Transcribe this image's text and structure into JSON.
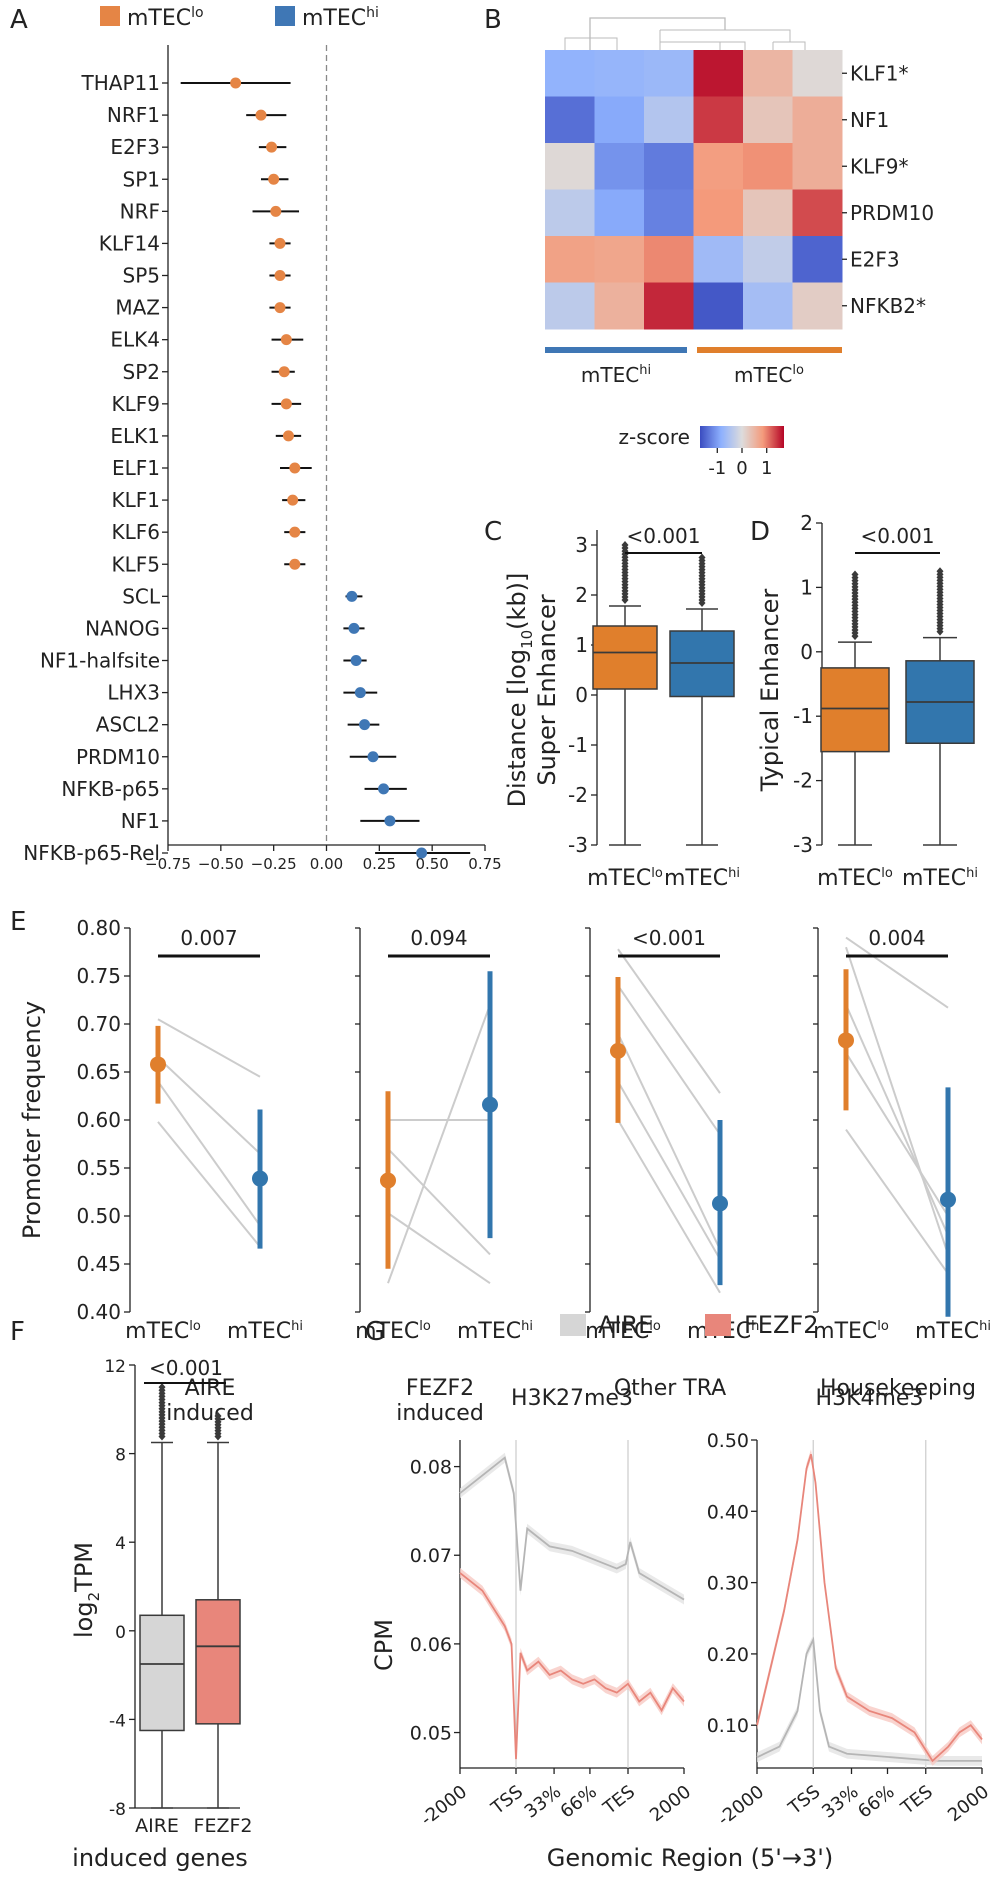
{
  "colors": {
    "lo": "#e58545",
    "hi": "#3f77b5",
    "lo_box": "#e07f2c",
    "hi_box": "#3276ad",
    "aire": "#d6d6d6",
    "fezf2": "#e8867b",
    "grey_line": "#cccccc"
  },
  "chart_data": [
    {
      "panel": "A",
      "type": "forest",
      "legend": [
        {
          "name": "mTEC",
          "sup": "lo"
        },
        {
          "name": "mTEC",
          "sup": "hi"
        }
      ],
      "xlim": [
        -0.75,
        0.75
      ],
      "xticks": [
        "−0.75",
        "−0.50",
        "−0.25",
        "0.00",
        "0.25",
        "0.50",
        "0.75"
      ],
      "xtick_values": [
        -0.75,
        -0.5,
        -0.25,
        0,
        0.25,
        0.5,
        0.75
      ],
      "rows": [
        {
          "label": "THAP11",
          "group": "lo",
          "est": -0.43,
          "lo": -0.69,
          "hi": -0.17
        },
        {
          "label": "NRF1",
          "group": "lo",
          "est": -0.31,
          "lo": -0.38,
          "hi": -0.19
        },
        {
          "label": "E2F3",
          "group": "lo",
          "est": -0.26,
          "lo": -0.32,
          "hi": -0.19
        },
        {
          "label": "SP1",
          "group": "lo",
          "est": -0.25,
          "lo": -0.31,
          "hi": -0.18
        },
        {
          "label": "NRF",
          "group": "lo",
          "est": -0.24,
          "lo": -0.35,
          "hi": -0.13
        },
        {
          "label": "KLF14",
          "group": "lo",
          "est": -0.22,
          "lo": -0.27,
          "hi": -0.17
        },
        {
          "label": "SP5",
          "group": "lo",
          "est": -0.22,
          "lo": -0.27,
          "hi": -0.17
        },
        {
          "label": "MAZ",
          "group": "lo",
          "est": -0.22,
          "lo": -0.27,
          "hi": -0.17
        },
        {
          "label": "ELK4",
          "group": "lo",
          "est": -0.19,
          "lo": -0.26,
          "hi": -0.11
        },
        {
          "label": "SP2",
          "group": "lo",
          "est": -0.2,
          "lo": -0.26,
          "hi": -0.15
        },
        {
          "label": "KLF9",
          "group": "lo",
          "est": -0.19,
          "lo": -0.26,
          "hi": -0.12
        },
        {
          "label": "ELK1",
          "group": "lo",
          "est": -0.18,
          "lo": -0.24,
          "hi": -0.12
        },
        {
          "label": "ELF1",
          "group": "lo",
          "est": -0.15,
          "lo": -0.22,
          "hi": -0.07
        },
        {
          "label": "KLF1",
          "group": "lo",
          "est": -0.16,
          "lo": -0.21,
          "hi": -0.1
        },
        {
          "label": "KLF6",
          "group": "lo",
          "est": -0.15,
          "lo": -0.2,
          "hi": -0.1
        },
        {
          "label": "KLF5",
          "group": "lo",
          "est": -0.15,
          "lo": -0.2,
          "hi": -0.1
        },
        {
          "label": "SCL",
          "group": "hi",
          "est": 0.12,
          "lo": 0.09,
          "hi": 0.17
        },
        {
          "label": "NANOG",
          "group": "hi",
          "est": 0.13,
          "lo": 0.08,
          "hi": 0.18
        },
        {
          "label": "NF1-halfsite",
          "group": "hi",
          "est": 0.14,
          "lo": 0.08,
          "hi": 0.19
        },
        {
          "label": "LHX3",
          "group": "hi",
          "est": 0.16,
          "lo": 0.08,
          "hi": 0.24
        },
        {
          "label": "ASCL2",
          "group": "hi",
          "est": 0.18,
          "lo": 0.1,
          "hi": 0.25
        },
        {
          "label": "PRDM10",
          "group": "hi",
          "est": 0.22,
          "lo": 0.11,
          "hi": 0.33
        },
        {
          "label": "NFKB-p65",
          "group": "hi",
          "est": 0.27,
          "lo": 0.18,
          "hi": 0.38
        },
        {
          "label": "NF1",
          "group": "hi",
          "est": 0.3,
          "lo": 0.16,
          "hi": 0.44
        },
        {
          "label": "NFKB-p65-Rel",
          "group": "hi",
          "est": 0.45,
          "lo": 0.23,
          "hi": 0.68
        }
      ]
    },
    {
      "panel": "B",
      "type": "heatmap",
      "rows": [
        "KLF1*",
        "NF1",
        "KLF9*",
        "PRDM10",
        "E2F3",
        "NFKB2*"
      ],
      "groups": [
        {
          "name": "mTEC",
          "sup": "hi"
        },
        {
          "name": "mTEC",
          "sup": "lo"
        }
      ],
      "values": [
        [
          -0.8,
          -0.75,
          -0.7,
          1.6,
          0.5,
          0.05
        ],
        [
          -1.4,
          -0.9,
          -0.45,
          1.4,
          0.3,
          0.6
        ],
        [
          0.05,
          -1.1,
          -1.3,
          0.8,
          0.9,
          0.6
        ],
        [
          -0.35,
          -0.9,
          -1.25,
          0.85,
          0.3,
          1.3
        ],
        [
          0.75,
          0.7,
          0.95,
          -0.65,
          -0.3,
          -1.5
        ],
        [
          -0.35,
          0.55,
          1.5,
          -1.6,
          -0.6,
          0.2
        ]
      ],
      "colorbar": {
        "title": "z-score",
        "ticks": [
          "-1",
          "0",
          "1"
        ],
        "range": [
          -1.7,
          1.7
        ]
      }
    },
    {
      "panel": "C",
      "type": "box",
      "title": "Super Enhancer",
      "ylabel_parts": [
        "Distance [log",
        "10",
        "(kb)]"
      ],
      "ylim": [
        -3,
        3.3
      ],
      "yticks": [
        "-3",
        "-2",
        "-1",
        "0",
        "1",
        "2",
        "3"
      ],
      "ytick_values": [
        -3,
        -2,
        -1,
        0,
        1,
        2,
        3
      ],
      "groups": [
        {
          "name": "mTEC",
          "sup": "lo",
          "q1": 0.12,
          "median": 0.85,
          "q3": 1.38,
          "whislo": -3.0,
          "whishi": 1.78,
          "fliers_max": 3.0
        },
        {
          "name": "mTEC",
          "sup": "hi",
          "q1": -0.03,
          "median": 0.64,
          "q3": 1.28,
          "whislo": -3.0,
          "whishi": 1.72,
          "fliers_max": 2.75
        }
      ],
      "pvalue": "<0.001"
    },
    {
      "panel": "D",
      "type": "box",
      "title": "Typical Enhancer",
      "ylim": [
        -3,
        2
      ],
      "yticks": [
        "-3",
        "-2",
        "-1",
        "0",
        "1",
        "2"
      ],
      "ytick_values": [
        -3,
        -2,
        -1,
        0,
        1,
        2
      ],
      "groups": [
        {
          "name": "mTEC",
          "sup": "lo",
          "q1": -1.55,
          "median": -0.88,
          "q3": -0.25,
          "whislo": -3.0,
          "whishi": 0.15,
          "fliers_max": 1.2
        },
        {
          "name": "mTEC",
          "sup": "hi",
          "q1": -1.42,
          "median": -0.78,
          "q3": -0.14,
          "whislo": -3.0,
          "whishi": 0.22,
          "fliers_max": 1.25
        }
      ],
      "pvalue": "<0.001"
    },
    {
      "panel": "E",
      "type": "pointrange",
      "ylabel": "Promoter frequency",
      "ylim": [
        0.4,
        0.8
      ],
      "yticks": [
        "0.40",
        "0.45",
        "0.50",
        "0.55",
        "0.60",
        "0.65",
        "0.70",
        "0.75",
        "0.80"
      ],
      "ytick_values": [
        0.4,
        0.45,
        0.5,
        0.55,
        0.6,
        0.65,
        0.7,
        0.75,
        0.8
      ],
      "xcats": [
        {
          "name": "mTEC",
          "sup": "lo"
        },
        {
          "name": "mTEC",
          "sup": "hi"
        }
      ],
      "subpanels": [
        {
          "title": [
            "AIRE",
            "induced"
          ],
          "pvalue": "0.007",
          "lo": {
            "mean": 0.658,
            "low": 0.617,
            "high": 0.698
          },
          "hi": {
            "mean": 0.539,
            "low": 0.466,
            "high": 0.611
          },
          "pairs": [
            [
              0.705,
              0.645
            ],
            [
              0.665,
              0.565
            ],
            [
              0.64,
              0.49
            ],
            [
              0.598,
              0.468
            ]
          ]
        },
        {
          "title": [
            "FEZF2",
            "induced"
          ],
          "pvalue": "0.094",
          "lo": {
            "mean": 0.537,
            "low": 0.445,
            "high": 0.63
          },
          "hi": {
            "mean": 0.616,
            "low": 0.477,
            "high": 0.755
          },
          "pairs": [
            [
              0.6,
              0.6
            ],
            [
              0.57,
              0.46
            ],
            [
              0.503,
              0.43
            ],
            [
              0.43,
              0.72
            ]
          ]
        },
        {
          "title": [
            "Other TRA"
          ],
          "pvalue": "<0.001",
          "lo": {
            "mean": 0.672,
            "low": 0.597,
            "high": 0.749
          },
          "hi": {
            "mean": 0.513,
            "low": 0.428,
            "high": 0.6
          },
          "pairs": [
            [
              0.778,
              0.628
            ],
            [
              0.74,
              0.585
            ],
            [
              0.69,
              0.465
            ],
            [
              0.64,
              0.455
            ],
            [
              0.6,
              0.42
            ]
          ]
        },
        {
          "title": [
            "Housekeeping"
          ],
          "pvalue": "0.004",
          "lo": {
            "mean": 0.683,
            "low": 0.61,
            "high": 0.757
          },
          "hi": {
            "mean": 0.517,
            "low": 0.395,
            "high": 0.634
          },
          "pairs": [
            [
              0.79,
              0.717
            ],
            [
              0.78,
              0.46
            ],
            [
              0.72,
              0.48
            ],
            [
              0.67,
              0.5
            ],
            [
              0.59,
              0.44
            ]
          ]
        }
      ]
    },
    {
      "panel": "F",
      "type": "box",
      "ylabel_parts": [
        "log",
        "2",
        "TPM"
      ],
      "ylim": [
        -8,
        12
      ],
      "yticks": [
        "-8",
        "-4",
        "0",
        "4",
        "8",
        "12"
      ],
      "ytick_values": [
        -8,
        -4,
        0,
        4,
        8,
        12
      ],
      "groups": [
        {
          "name": "AIRE",
          "q1": -4.5,
          "median": -1.5,
          "q3": 0.7,
          "whislo": -8.0,
          "whishi": 8.5,
          "fliers_max": 11.0
        },
        {
          "name": "FEZF2",
          "q1": -4.2,
          "median": -0.7,
          "q3": 1.4,
          "whislo": -8.0,
          "whishi": 8.5,
          "fliers_max": 9.7
        }
      ],
      "pvalue": "<0.001",
      "xlabel": "induced genes"
    },
    {
      "panel": "G",
      "type": "line",
      "legend": [
        "AIRE",
        "FEZF2"
      ],
      "ylabel": "CPM",
      "xlabel": "Genomic Region (5'→3')",
      "xticks": [
        "-2000",
        "TSS",
        "33%",
        "66%",
        "TES",
        "2000"
      ],
      "xtick_values": [
        0,
        0.25,
        0.42,
        0.58,
        0.75,
        1.0
      ],
      "subplots": [
        {
          "title": "H3K27me3",
          "ylim": [
            0.046,
            0.083
          ],
          "yticks": [
            "0.05",
            "0.06",
            "0.07",
            "0.08"
          ],
          "ytick_values": [
            0.05,
            0.06,
            0.07,
            0.08
          ],
          "series": [
            {
              "name": "AIRE",
              "x": [
                0,
                0.05,
                0.1,
                0.15,
                0.2,
                0.24,
                0.27,
                0.3,
                0.35,
                0.4,
                0.5,
                0.6,
                0.7,
                0.74,
                0.76,
                0.8,
                0.9,
                1.0
              ],
              "y": [
                0.077,
                0.078,
                0.079,
                0.08,
                0.081,
                0.077,
                0.066,
                0.073,
                0.072,
                0.071,
                0.0705,
                0.0695,
                0.0685,
                0.069,
                0.0715,
                0.068,
                0.0665,
                0.065
              ]
            },
            {
              "name": "FEZF2",
              "x": [
                0,
                0.05,
                0.1,
                0.15,
                0.2,
                0.23,
                0.25,
                0.27,
                0.3,
                0.35,
                0.4,
                0.45,
                0.5,
                0.55,
                0.6,
                0.65,
                0.7,
                0.75,
                0.8,
                0.85,
                0.9,
                0.95,
                1.0
              ],
              "y": [
                0.068,
                0.067,
                0.066,
                0.064,
                0.062,
                0.06,
                0.047,
                0.059,
                0.057,
                0.058,
                0.0565,
                0.057,
                0.056,
                0.0555,
                0.056,
                0.055,
                0.0545,
                0.0555,
                0.0535,
                0.0545,
                0.0525,
                0.055,
                0.0535
              ]
            }
          ]
        },
        {
          "title": "H3K4me3",
          "ylim": [
            0.04,
            0.5
          ],
          "yticks": [
            "0.10",
            "0.20",
            "0.30",
            "0.40",
            "0.50"
          ],
          "ytick_values": [
            0.1,
            0.2,
            0.3,
            0.4,
            0.5
          ],
          "series": [
            {
              "name": "AIRE",
              "x": [
                0,
                0.1,
                0.18,
                0.22,
                0.25,
                0.28,
                0.32,
                0.4,
                0.6,
                0.8,
                1.0
              ],
              "y": [
                0.055,
                0.07,
                0.12,
                0.2,
                0.22,
                0.12,
                0.07,
                0.06,
                0.055,
                0.05,
                0.05
              ]
            },
            {
              "name": "FEZF2",
              "x": [
                0,
                0.06,
                0.12,
                0.18,
                0.22,
                0.24,
                0.26,
                0.3,
                0.35,
                0.4,
                0.5,
                0.6,
                0.7,
                0.78,
                0.85,
                0.9,
                0.95,
                1.0
              ],
              "y": [
                0.1,
                0.18,
                0.26,
                0.36,
                0.46,
                0.48,
                0.44,
                0.3,
                0.18,
                0.14,
                0.12,
                0.11,
                0.09,
                0.05,
                0.07,
                0.09,
                0.1,
                0.08
              ]
            }
          ]
        }
      ]
    }
  ]
}
